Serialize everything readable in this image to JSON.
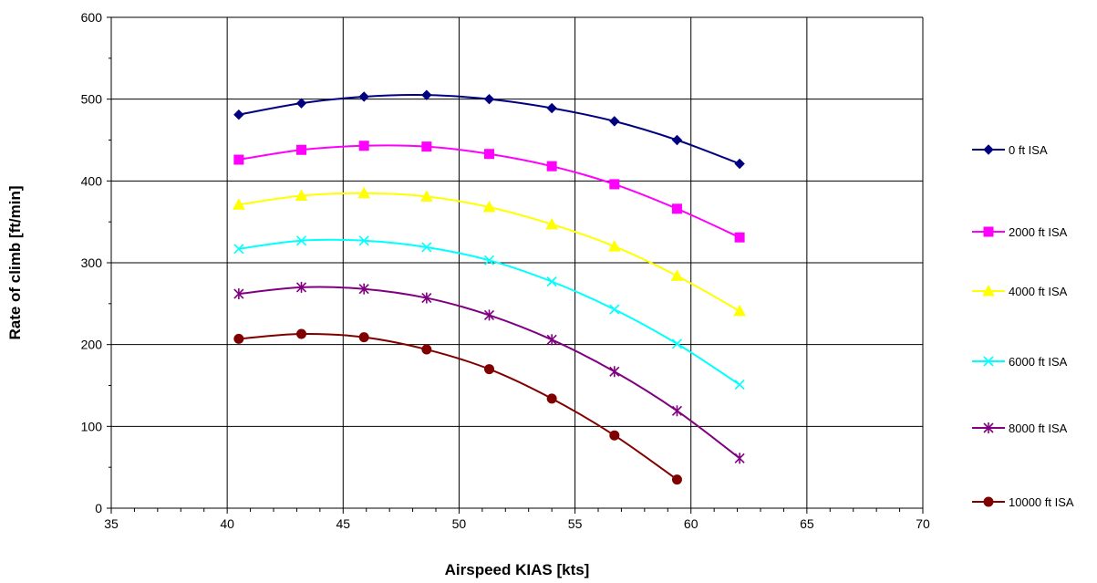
{
  "chart_data": {
    "type": "line",
    "title": "",
    "xlabel": "Airspeed  KIAS [kts]",
    "ylabel": "Rate of climb [ft/min]",
    "xlim": [
      35,
      70
    ],
    "ylim": [
      0,
      600
    ],
    "x_ticks": [
      35,
      40,
      45,
      50,
      55,
      60,
      65,
      70
    ],
    "y_ticks": [
      0,
      100,
      200,
      300,
      400,
      500,
      600
    ],
    "grid": true,
    "legend_position": "right",
    "smooth": true,
    "series": [
      {
        "name": "0 ft ISA",
        "color": "#000080",
        "marker": "diamond",
        "x": [
          40.5,
          43.2,
          45.9,
          48.6,
          51.3,
          54.0,
          56.7,
          59.4,
          62.1
        ],
        "y": [
          481,
          495,
          503,
          505,
          500,
          489,
          473,
          450,
          421
        ]
      },
      {
        "name": "2000 ft ISA",
        "color": "#FF00FF",
        "marker": "square",
        "x": [
          40.5,
          43.2,
          45.9,
          48.6,
          51.3,
          54.0,
          56.7,
          59.4,
          62.1
        ],
        "y": [
          426,
          438,
          443,
          442,
          433,
          418,
          396,
          366,
          331
        ]
      },
      {
        "name": "4000 ft ISA",
        "color": "#FFFF00",
        "marker": "triangle",
        "x": [
          40.5,
          43.2,
          45.9,
          48.6,
          51.3,
          54.0,
          56.7,
          59.4,
          62.1
        ],
        "y": [
          371,
          382,
          385,
          381,
          368,
          347,
          320,
          284,
          241
        ]
      },
      {
        "name": "6000 ft ISA",
        "color": "#00FFFF",
        "marker": "x",
        "x": [
          40.5,
          43.2,
          45.9,
          48.6,
          51.3,
          54.0,
          56.7,
          59.4,
          62.1
        ],
        "y": [
          317,
          327,
          327,
          319,
          303,
          277,
          243,
          201,
          151
        ]
      },
      {
        "name": "8000 ft ISA",
        "color": "#800080",
        "marker": "star",
        "x": [
          40.5,
          43.2,
          45.9,
          48.6,
          51.3,
          54.0,
          56.7,
          59.4,
          62.1
        ],
        "y": [
          262,
          270,
          268,
          257,
          236,
          206,
          167,
          119,
          61
        ]
      },
      {
        "name": "10000 ft ISA",
        "color": "#800000",
        "marker": "circle",
        "x": [
          40.5,
          43.2,
          45.9,
          48.6,
          51.3,
          54.0,
          56.7,
          59.4
        ],
        "y": [
          207,
          213,
          209,
          194,
          170,
          134,
          89,
          35
        ]
      }
    ]
  }
}
